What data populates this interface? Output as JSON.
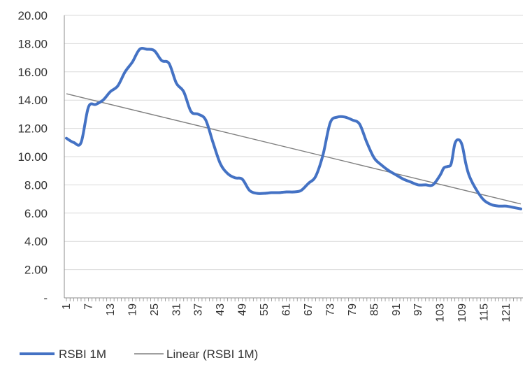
{
  "chart_data": {
    "type": "line",
    "x": [
      1,
      3,
      5,
      7,
      9,
      11,
      13,
      15,
      17,
      19,
      21,
      23,
      25,
      27,
      29,
      31,
      33,
      35,
      37,
      39,
      41,
      43,
      45,
      47,
      49,
      51,
      53,
      55,
      57,
      59,
      61,
      63,
      65,
      67,
      69,
      71,
      73,
      75,
      77,
      79,
      81,
      83,
      85,
      87,
      89,
      91,
      93,
      95,
      97,
      99,
      101,
      103,
      104,
      105,
      106,
      107,
      108,
      109,
      110,
      111,
      113,
      115,
      117,
      119,
      121,
      123,
      125
    ],
    "series": [
      {
        "name": "RSBI 1M",
        "color": "#4472C4",
        "values": [
          11.3,
          11.0,
          11.0,
          13.5,
          13.7,
          14.0,
          14.6,
          15.0,
          16.0,
          16.7,
          17.6,
          17.6,
          17.5,
          16.8,
          16.6,
          15.2,
          14.6,
          13.2,
          13.0,
          12.6,
          11.0,
          9.5,
          8.8,
          8.5,
          8.4,
          7.6,
          7.4,
          7.4,
          7.45,
          7.45,
          7.5,
          7.5,
          7.6,
          8.1,
          8.6,
          10.1,
          12.4,
          12.8,
          12.8,
          12.6,
          12.3,
          11.0,
          9.9,
          9.4,
          9.0,
          8.7,
          8.4,
          8.2,
          8.0,
          8.0,
          8.0,
          8.7,
          9.2,
          9.3,
          9.5,
          10.9,
          11.2,
          10.8,
          9.5,
          8.6,
          7.6,
          6.9,
          6.6,
          6.5,
          6.5,
          6.4,
          6.3
        ]
      },
      {
        "name": "Linear (RSBI 1M)",
        "color": "#808080",
        "trend_start": 14.45,
        "trend_end": 6.65
      }
    ],
    "x_ticks": [
      "1",
      "7",
      "13",
      "19",
      "25",
      "31",
      "37",
      "43",
      "49",
      "55",
      "61",
      "67",
      "73",
      "79",
      "85",
      "91",
      "97",
      "103",
      "109",
      "115",
      "121"
    ],
    "x_tick_values": [
      1,
      7,
      13,
      19,
      25,
      31,
      37,
      43,
      49,
      55,
      61,
      67,
      73,
      79,
      85,
      91,
      97,
      103,
      109,
      115,
      121
    ],
    "x_range": [
      1,
      125
    ],
    "y_ticks": [
      "-",
      "2.00",
      "4.00",
      "6.00",
      "8.00",
      "10.00",
      "12.00",
      "14.00",
      "16.00",
      "18.00",
      "20.00"
    ],
    "ylim": [
      0,
      20
    ],
    "grid": "horizontal",
    "legend_position": "bottom-left",
    "legend": [
      "RSBI 1M",
      "Linear (RSBI 1M)"
    ]
  }
}
